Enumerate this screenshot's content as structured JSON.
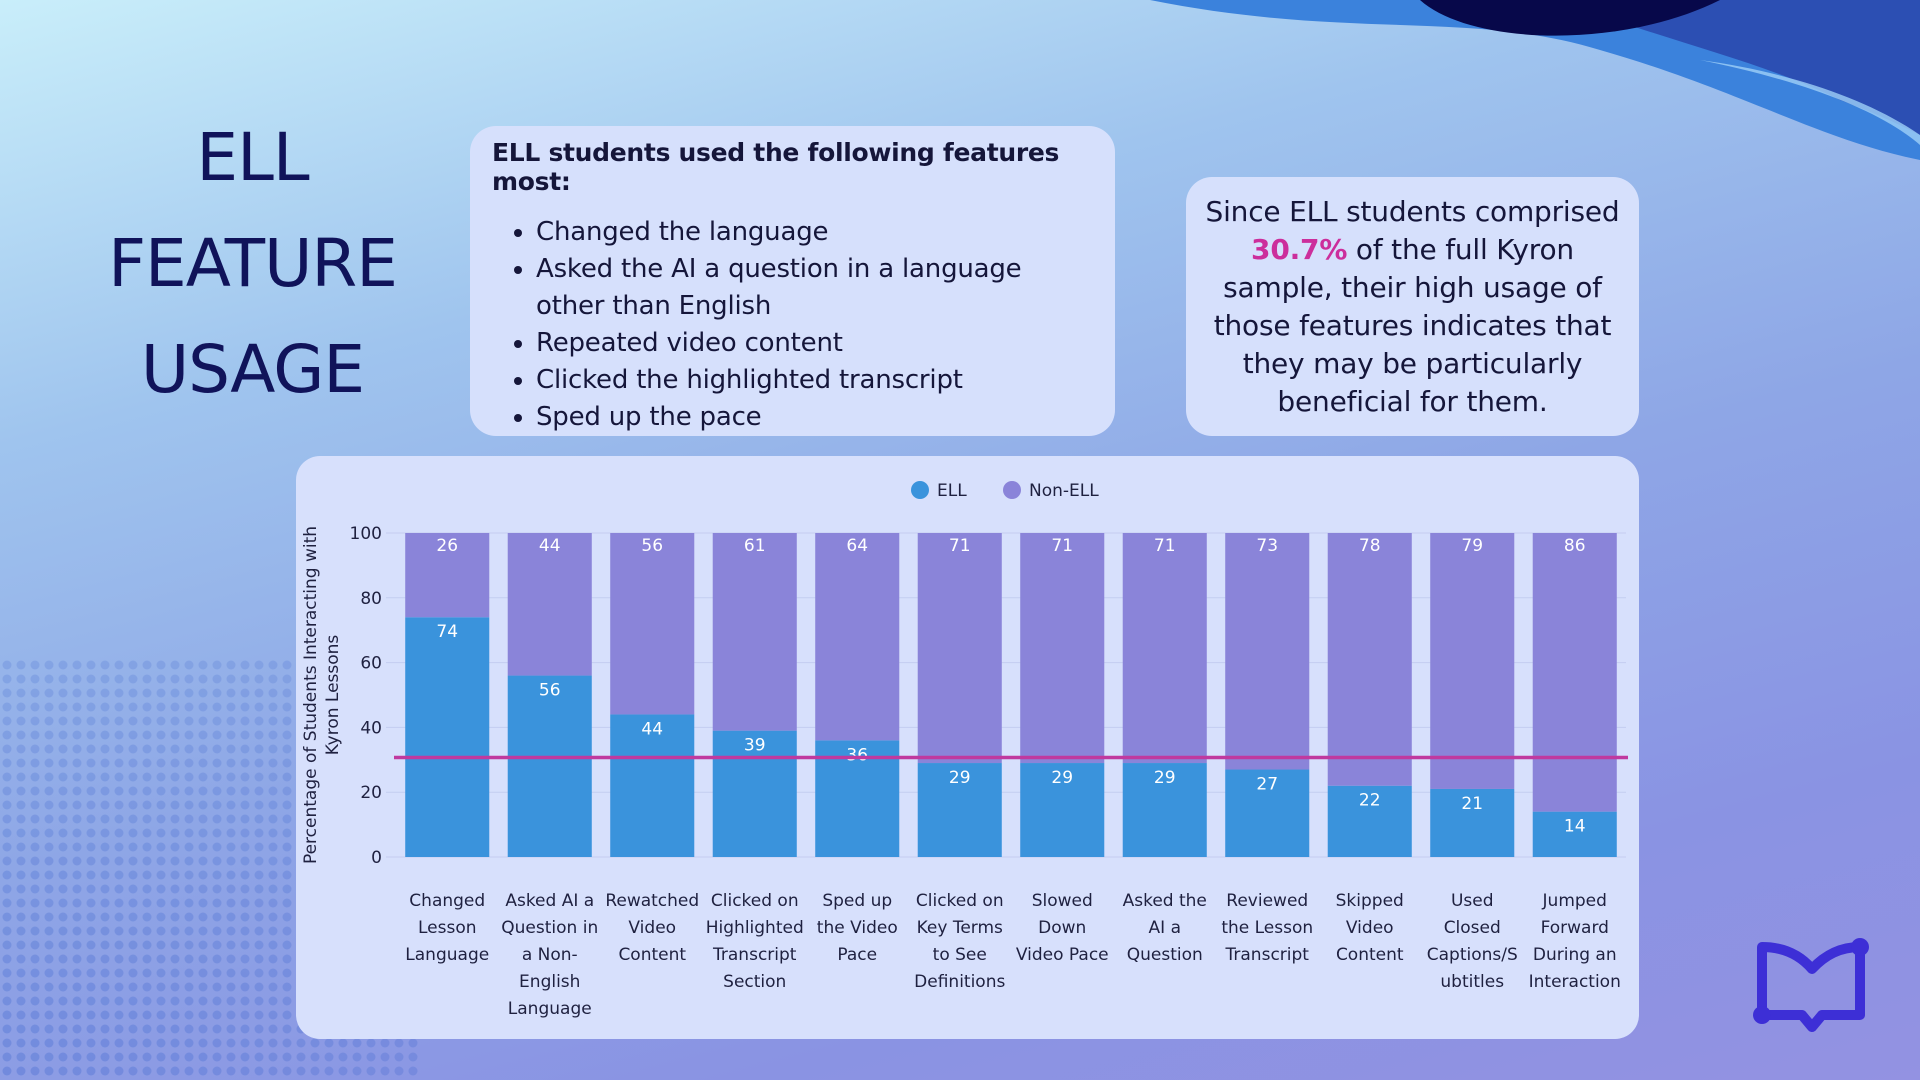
{
  "slide": {
    "title_lines": [
      "ELL",
      "FEATURE",
      "USAGE"
    ],
    "features_heading": "ELL students used the following features most:",
    "features": [
      "Changed the language",
      "Asked the AI a question in a language other than English",
      "Repeated video content",
      "Clicked the highlighted transcript",
      "Sped up the pace"
    ],
    "stat_text_before": "Since ELL students comprised",
    "stat_highlight": "30.7%",
    "stat_text_after": "of the full Kyron sample, their high usage of those features indicates that they may be particularly beneficial for them.",
    "accent_color": "#cc2e9c",
    "logo_icon": "open-book-icon"
  },
  "chart_data": {
    "type": "bar",
    "stacked": true,
    "ylabel": "Percentage of Students Interacting with Kyron Lessons",
    "ylim": [
      0,
      100
    ],
    "yticks": [
      0,
      20,
      40,
      60,
      80,
      100
    ],
    "legend_position": "top-center",
    "categories": [
      "Changed Lesson Language",
      "Asked AI a Question in a Non-English Language",
      "Rewatched Video Content",
      "Clicked on Highlighted Transcript Section",
      "Sped up the Video Pace",
      "Clicked on Key Terms to See Definitions",
      "Slowed Down Video Pace",
      "Asked the AI a Question",
      "Reviewed the Lesson Transcript",
      "Skipped Video Content",
      "Used Closed Captions/Subtitles",
      "Jumped Forward During an Interaction"
    ],
    "category_lines": [
      [
        "Changed",
        "Lesson",
        "Language"
      ],
      [
        "Asked AI a",
        "Question in",
        "a Non-",
        "English",
        "Language"
      ],
      [
        "Rewatched",
        "Video",
        "Content"
      ],
      [
        "Clicked on",
        "Highlighted",
        "Transcript",
        "Section"
      ],
      [
        "Sped up",
        "the Video",
        "Pace"
      ],
      [
        "Clicked on",
        "Key Terms",
        "to See",
        "Definitions"
      ],
      [
        "Slowed",
        "Down",
        "Video Pace"
      ],
      [
        "Asked the",
        "AI a",
        "Question"
      ],
      [
        "Reviewed",
        "the Lesson",
        "Transcript"
      ],
      [
        "Skipped",
        "Video",
        "Content"
      ],
      [
        "Used",
        "Closed",
        "Captions/S",
        "ubtitles"
      ],
      [
        "Jumped",
        "Forward",
        "During an",
        "Interaction"
      ]
    ],
    "series": [
      {
        "name": "ELL",
        "color": "#3a93dc",
        "values": [
          74,
          56,
          44,
          39,
          36,
          29,
          29,
          29,
          27,
          22,
          21,
          14
        ]
      },
      {
        "name": "Non-ELL",
        "color": "#8a84d9",
        "values": [
          26,
          44,
          56,
          61,
          64,
          71,
          71,
          71,
          73,
          78,
          79,
          86
        ]
      }
    ],
    "reference_line": {
      "value": 30.7,
      "color": "#c0399f"
    }
  }
}
